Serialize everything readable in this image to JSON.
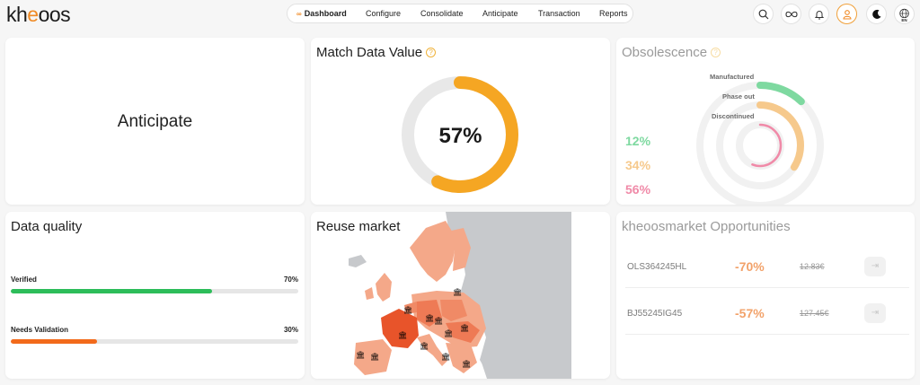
{
  "app": {
    "logo": "kheoos"
  },
  "nav": {
    "items": [
      {
        "label": "Dashboard",
        "active": true,
        "icon": "infinity-icon"
      },
      {
        "label": "Configure"
      },
      {
        "label": "Consolidate"
      },
      {
        "label": "Anticipate"
      },
      {
        "label": "Transaction"
      },
      {
        "label": "Reports"
      }
    ]
  },
  "header_icons": [
    "search-icon",
    "infinity-icon",
    "bell-icon",
    "user-icon",
    "moon-icon",
    "globe-icon"
  ],
  "language": "EN",
  "colors": {
    "accent": "#f08a24",
    "green": "#2dbd5a",
    "orange_bar": "#f26a1b",
    "manufactured": "#7ed9a0",
    "phase_out": "#f6c98c",
    "discontinued": "#f08aa8",
    "match_ring": "#f5a623"
  },
  "anticipate_card": {
    "label": "Anticipate"
  },
  "match_card": {
    "title": "Match Data Value",
    "value": "57%",
    "percent": 57
  },
  "obsolescence": {
    "title": "Obsolescence",
    "rings": [
      {
        "label": "Manufactured",
        "pct_text": "12%",
        "value": 12
      },
      {
        "label": "Phase out",
        "pct_text": "34%",
        "value": 34
      },
      {
        "label": "Discontinued",
        "pct_text": "56%",
        "value": 56
      }
    ]
  },
  "data_quality": {
    "title": "Data quality",
    "rows": [
      {
        "label": "Verified",
        "pct_text": "70%",
        "value": 70
      },
      {
        "label": "Needs Validation",
        "pct_text": "30%",
        "value": 30
      }
    ]
  },
  "reuse_market": {
    "title": "Reuse market"
  },
  "opportunities": {
    "title": "kheoosmarket Opportunities",
    "rows": [
      {
        "code": "OLS364245HL",
        "discount": "-70%",
        "price": "12.83€"
      },
      {
        "code": "BJ55245IG45",
        "discount": "-57%",
        "price": "127.45€"
      }
    ]
  }
}
